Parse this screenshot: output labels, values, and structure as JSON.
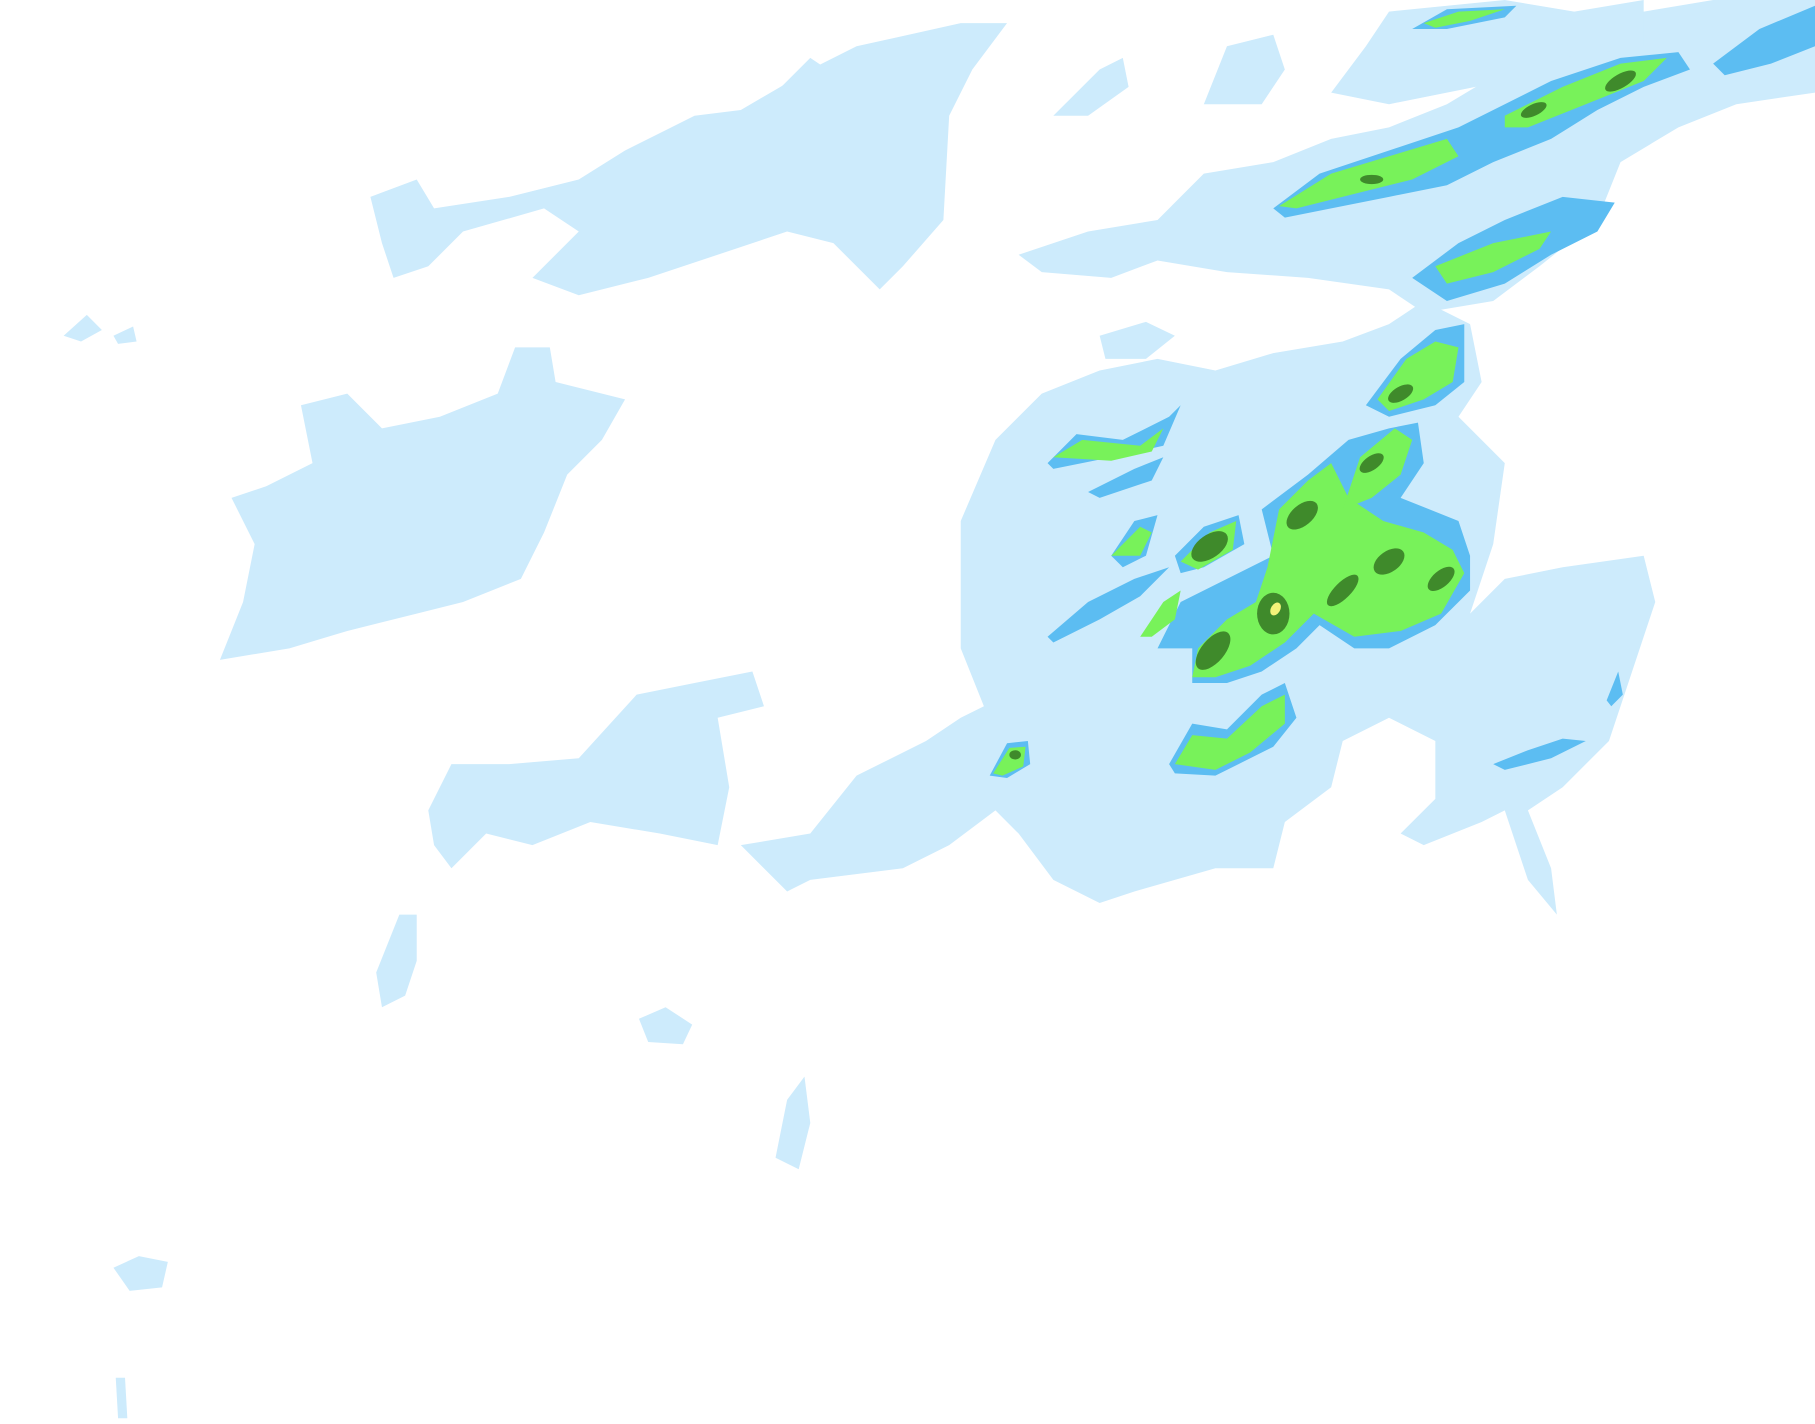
{
  "map": {
    "layer": "precipitation-radar-overlay",
    "colors": {
      "light": "#cdebfc",
      "moderate": "#5cbdf2",
      "heavy": "#78f25a",
      "very_heavy": "#3f8a2b",
      "extreme": "#f3f37a"
    }
  }
}
